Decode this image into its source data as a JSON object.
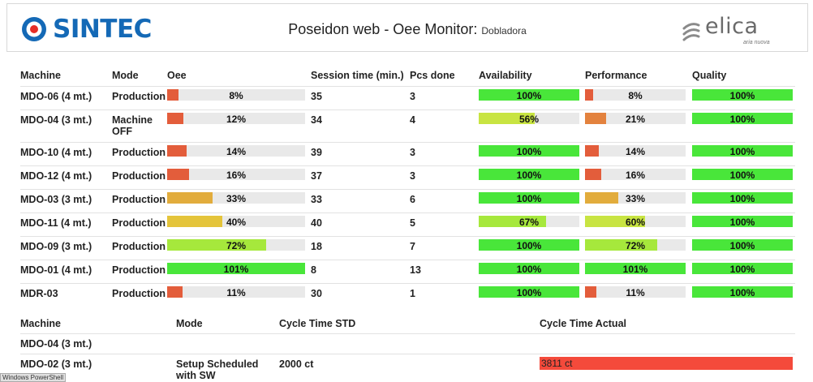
{
  "header": {
    "brand": "SINTEC",
    "title": "Poseidon web - Oee Monitor:",
    "subtitle": "Dobladora",
    "partner_brand": "elica",
    "partner_tagline": "aria nuova"
  },
  "oee_table": {
    "columns": [
      "Machine",
      "Mode",
      "Oee",
      "Session time (min.)",
      "Pcs done",
      "Availability",
      "Performance",
      "Quality"
    ],
    "rows": [
      {
        "machine": "MDO-06 (4 mt.)",
        "mode": "Production",
        "oee": 8,
        "oee_label": "8%",
        "session": "35",
        "pcs": "3",
        "avail": 100,
        "avail_label": "100%",
        "perf": 8,
        "perf_label": "8%",
        "qual": 100,
        "qual_label": "100%"
      },
      {
        "machine": "MDO-04 (3 mt.)",
        "mode": "Machine OFF",
        "oee": 12,
        "oee_label": "12%",
        "session": "34",
        "pcs": "4",
        "avail": 56,
        "avail_label": "56%",
        "perf": 21,
        "perf_label": "21%",
        "qual": 100,
        "qual_label": "100%"
      },
      {
        "machine": "MDO-10 (4 mt.)",
        "mode": "Production",
        "oee": 14,
        "oee_label": "14%",
        "session": "39",
        "pcs": "3",
        "avail": 100,
        "avail_label": "100%",
        "perf": 14,
        "perf_label": "14%",
        "qual": 100,
        "qual_label": "100%"
      },
      {
        "machine": "MDO-12 (4 mt.)",
        "mode": "Production",
        "oee": 16,
        "oee_label": "16%",
        "session": "37",
        "pcs": "3",
        "avail": 100,
        "avail_label": "100%",
        "perf": 16,
        "perf_label": "16%",
        "qual": 100,
        "qual_label": "100%"
      },
      {
        "machine": "MDO-03 (3 mt.)",
        "mode": "Production",
        "oee": 33,
        "oee_label": "33%",
        "session": "33",
        "pcs": "6",
        "avail": 100,
        "avail_label": "100%",
        "perf": 33,
        "perf_label": "33%",
        "qual": 100,
        "qual_label": "100%"
      },
      {
        "machine": "MDO-11 (4 mt.)",
        "mode": "Production",
        "oee": 40,
        "oee_label": "40%",
        "session": "40",
        "pcs": "5",
        "avail": 67,
        "avail_label": "67%",
        "perf": 60,
        "perf_label": "60%",
        "qual": 100,
        "qual_label": "100%"
      },
      {
        "machine": "MDO-09 (3 mt.)",
        "mode": "Production",
        "oee": 72,
        "oee_label": "72%",
        "session": "18",
        "pcs": "7",
        "avail": 100,
        "avail_label": "100%",
        "perf": 72,
        "perf_label": "72%",
        "qual": 100,
        "qual_label": "100%"
      },
      {
        "machine": "MDO-01 (4 mt.)",
        "mode": "Production",
        "oee": 101,
        "oee_label": "101%",
        "session": "8",
        "pcs": "13",
        "avail": 100,
        "avail_label": "100%",
        "perf": 101,
        "perf_label": "101%",
        "qual": 100,
        "qual_label": "100%"
      },
      {
        "machine": "MDR-03",
        "mode": "Production",
        "oee": 11,
        "oee_label": "11%",
        "session": "30",
        "pcs": "1",
        "avail": 100,
        "avail_label": "100%",
        "perf": 11,
        "perf_label": "11%",
        "qual": 100,
        "qual_label": "100%"
      }
    ]
  },
  "cycle_table": {
    "columns": [
      "Machine",
      "Mode",
      "Cycle Time STD",
      "Cycle Time Actual"
    ],
    "rows": [
      {
        "machine": "MDO-04 (3 mt.)",
        "mode": "",
        "std": "",
        "actual": ""
      },
      {
        "machine": "MDO-02 (3 mt.)",
        "mode": "Setup Scheduled with SW",
        "std": "2000 ct",
        "actual": "3811 ct"
      }
    ]
  },
  "tooltip": "Windows PowerShell",
  "colors": {
    "red": "#e35d3b",
    "orange": "#e3823e",
    "amber": "#e2ac3c",
    "yellow": "#e4c43a",
    "yellowgreen": "#c8e442",
    "lightgreen": "#a6e83c",
    "green": "#49e63a",
    "track": "#e9e9e9",
    "alert_red": "#f44a3b",
    "brand_blue": "#1469b6"
  }
}
